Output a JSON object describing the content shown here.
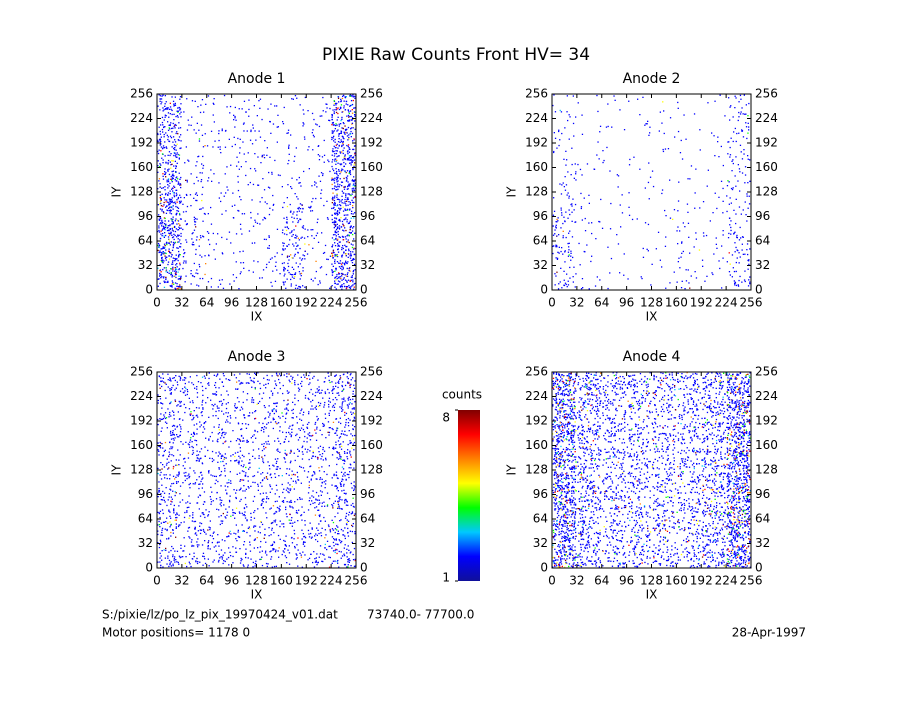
{
  "title": "PIXIE Raw Counts Front HV= 34",
  "chart_data": [
    {
      "type": "heatmap",
      "title": "Anode 1",
      "xlabel": "IX",
      "ylabel": "IY",
      "xlim": [
        0,
        256
      ],
      "ylim": [
        0,
        256
      ],
      "xticks": [
        0,
        32,
        64,
        96,
        128,
        160,
        192,
        224,
        256
      ],
      "yticks": [
        0,
        32,
        64,
        96,
        128,
        160,
        192,
        224,
        256
      ],
      "z": [
        [
          0.45,
          0.08,
          0.04,
          0.04,
          0.05,
          0.22,
          0.05,
          0.45
        ],
        [
          0.5,
          0.1,
          0.04,
          0.04,
          0.05,
          0.2,
          0.05,
          0.45
        ],
        [
          0.5,
          0.12,
          0.04,
          0.05,
          0.05,
          0.2,
          0.06,
          0.45
        ],
        [
          0.45,
          0.1,
          0.04,
          0.05,
          0.05,
          0.12,
          0.06,
          0.45
        ],
        [
          0.35,
          0.06,
          0.04,
          0.05,
          0.05,
          0.05,
          0.06,
          0.45
        ],
        [
          0.3,
          0.06,
          0.04,
          0.06,
          0.05,
          0.04,
          0.06,
          0.45
        ],
        [
          0.3,
          0.06,
          0.05,
          0.08,
          0.05,
          0.05,
          0.05,
          0.45
        ],
        [
          0.3,
          0.05,
          0.04,
          0.06,
          0.04,
          0.04,
          0.05,
          0.4
        ]
      ]
    },
    {
      "type": "heatmap",
      "title": "Anode 2",
      "xlabel": "IX",
      "ylabel": "IY",
      "xlim": [
        0,
        256
      ],
      "ylim": [
        0,
        256
      ],
      "xticks": [
        0,
        32,
        64,
        96,
        128,
        160,
        192,
        224,
        256
      ],
      "yticks": [
        0,
        32,
        64,
        96,
        128,
        160,
        192,
        224,
        256
      ],
      "z": [
        [
          0.12,
          0.03,
          0.02,
          0.02,
          0.02,
          0.06,
          0.03,
          0.12
        ],
        [
          0.14,
          0.03,
          0.02,
          0.02,
          0.02,
          0.05,
          0.03,
          0.12
        ],
        [
          0.14,
          0.04,
          0.02,
          0.02,
          0.02,
          0.04,
          0.03,
          0.1
        ],
        [
          0.1,
          0.03,
          0.02,
          0.02,
          0.02,
          0.03,
          0.03,
          0.08
        ],
        [
          0.06,
          0.02,
          0.02,
          0.02,
          0.02,
          0.02,
          0.02,
          0.08
        ],
        [
          0.05,
          0.02,
          0.02,
          0.02,
          0.02,
          0.02,
          0.02,
          0.08
        ],
        [
          0.05,
          0.02,
          0.02,
          0.03,
          0.02,
          0.02,
          0.02,
          0.1
        ],
        [
          0.05,
          0.02,
          0.02,
          0.02,
          0.02,
          0.02,
          0.02,
          0.1
        ]
      ]
    },
    {
      "type": "heatmap",
      "title": "Anode 3",
      "xlabel": "IX",
      "ylabel": "IY",
      "xlim": [
        0,
        256
      ],
      "ylim": [
        0,
        256
      ],
      "xticks": [
        0,
        32,
        64,
        96,
        128,
        160,
        192,
        224,
        256
      ],
      "yticks": [
        0,
        32,
        64,
        96,
        128,
        160,
        192,
        224,
        256
      ],
      "z": [
        [
          0.22,
          0.16,
          0.14,
          0.14,
          0.15,
          0.15,
          0.15,
          0.24
        ],
        [
          0.2,
          0.15,
          0.14,
          0.14,
          0.15,
          0.15,
          0.15,
          0.22
        ],
        [
          0.2,
          0.15,
          0.14,
          0.14,
          0.14,
          0.15,
          0.15,
          0.22
        ],
        [
          0.2,
          0.15,
          0.14,
          0.14,
          0.14,
          0.14,
          0.15,
          0.22
        ],
        [
          0.2,
          0.15,
          0.14,
          0.14,
          0.14,
          0.14,
          0.15,
          0.22
        ],
        [
          0.2,
          0.15,
          0.14,
          0.14,
          0.14,
          0.14,
          0.15,
          0.22
        ],
        [
          0.2,
          0.15,
          0.14,
          0.14,
          0.14,
          0.14,
          0.15,
          0.24
        ],
        [
          0.2,
          0.15,
          0.14,
          0.14,
          0.14,
          0.14,
          0.15,
          0.24
        ]
      ]
    },
    {
      "type": "heatmap",
      "title": "Anode 4",
      "xlabel": "IX",
      "ylabel": "IY",
      "xlim": [
        0,
        256
      ],
      "ylim": [
        0,
        256
      ],
      "xticks": [
        0,
        32,
        64,
        96,
        128,
        160,
        192,
        224,
        256
      ],
      "yticks": [
        0,
        32,
        64,
        96,
        128,
        160,
        192,
        224,
        256
      ],
      "z": [
        [
          0.55,
          0.3,
          0.22,
          0.22,
          0.22,
          0.22,
          0.3,
          0.6
        ],
        [
          0.55,
          0.3,
          0.22,
          0.22,
          0.22,
          0.22,
          0.3,
          0.6
        ],
        [
          0.55,
          0.3,
          0.22,
          0.22,
          0.22,
          0.22,
          0.3,
          0.6
        ],
        [
          0.55,
          0.3,
          0.22,
          0.22,
          0.22,
          0.22,
          0.3,
          0.6
        ],
        [
          0.55,
          0.3,
          0.22,
          0.22,
          0.22,
          0.22,
          0.3,
          0.6
        ],
        [
          0.55,
          0.3,
          0.22,
          0.22,
          0.22,
          0.22,
          0.3,
          0.6
        ],
        [
          0.55,
          0.3,
          0.22,
          0.22,
          0.22,
          0.22,
          0.3,
          0.55
        ],
        [
          0.6,
          0.35,
          0.25,
          0.25,
          0.25,
          0.25,
          0.3,
          0.55
        ]
      ]
    }
  ],
  "colorbar": {
    "label": "counts",
    "lim": [
      1,
      8
    ],
    "ticks": [
      1,
      8
    ],
    "colormap": [
      "#10109a",
      "#0000ff",
      "#00c8ff",
      "#00ff00",
      "#ffff00",
      "#ff8000",
      "#ff0000",
      "#800000"
    ]
  },
  "footer": {
    "file": "S:/pixie/lz/po_lz_pix_19970424_v01.dat",
    "range": "73740.0- 77700.0",
    "motor": "Motor positions= 1178 0",
    "date": "28-Apr-1997"
  }
}
